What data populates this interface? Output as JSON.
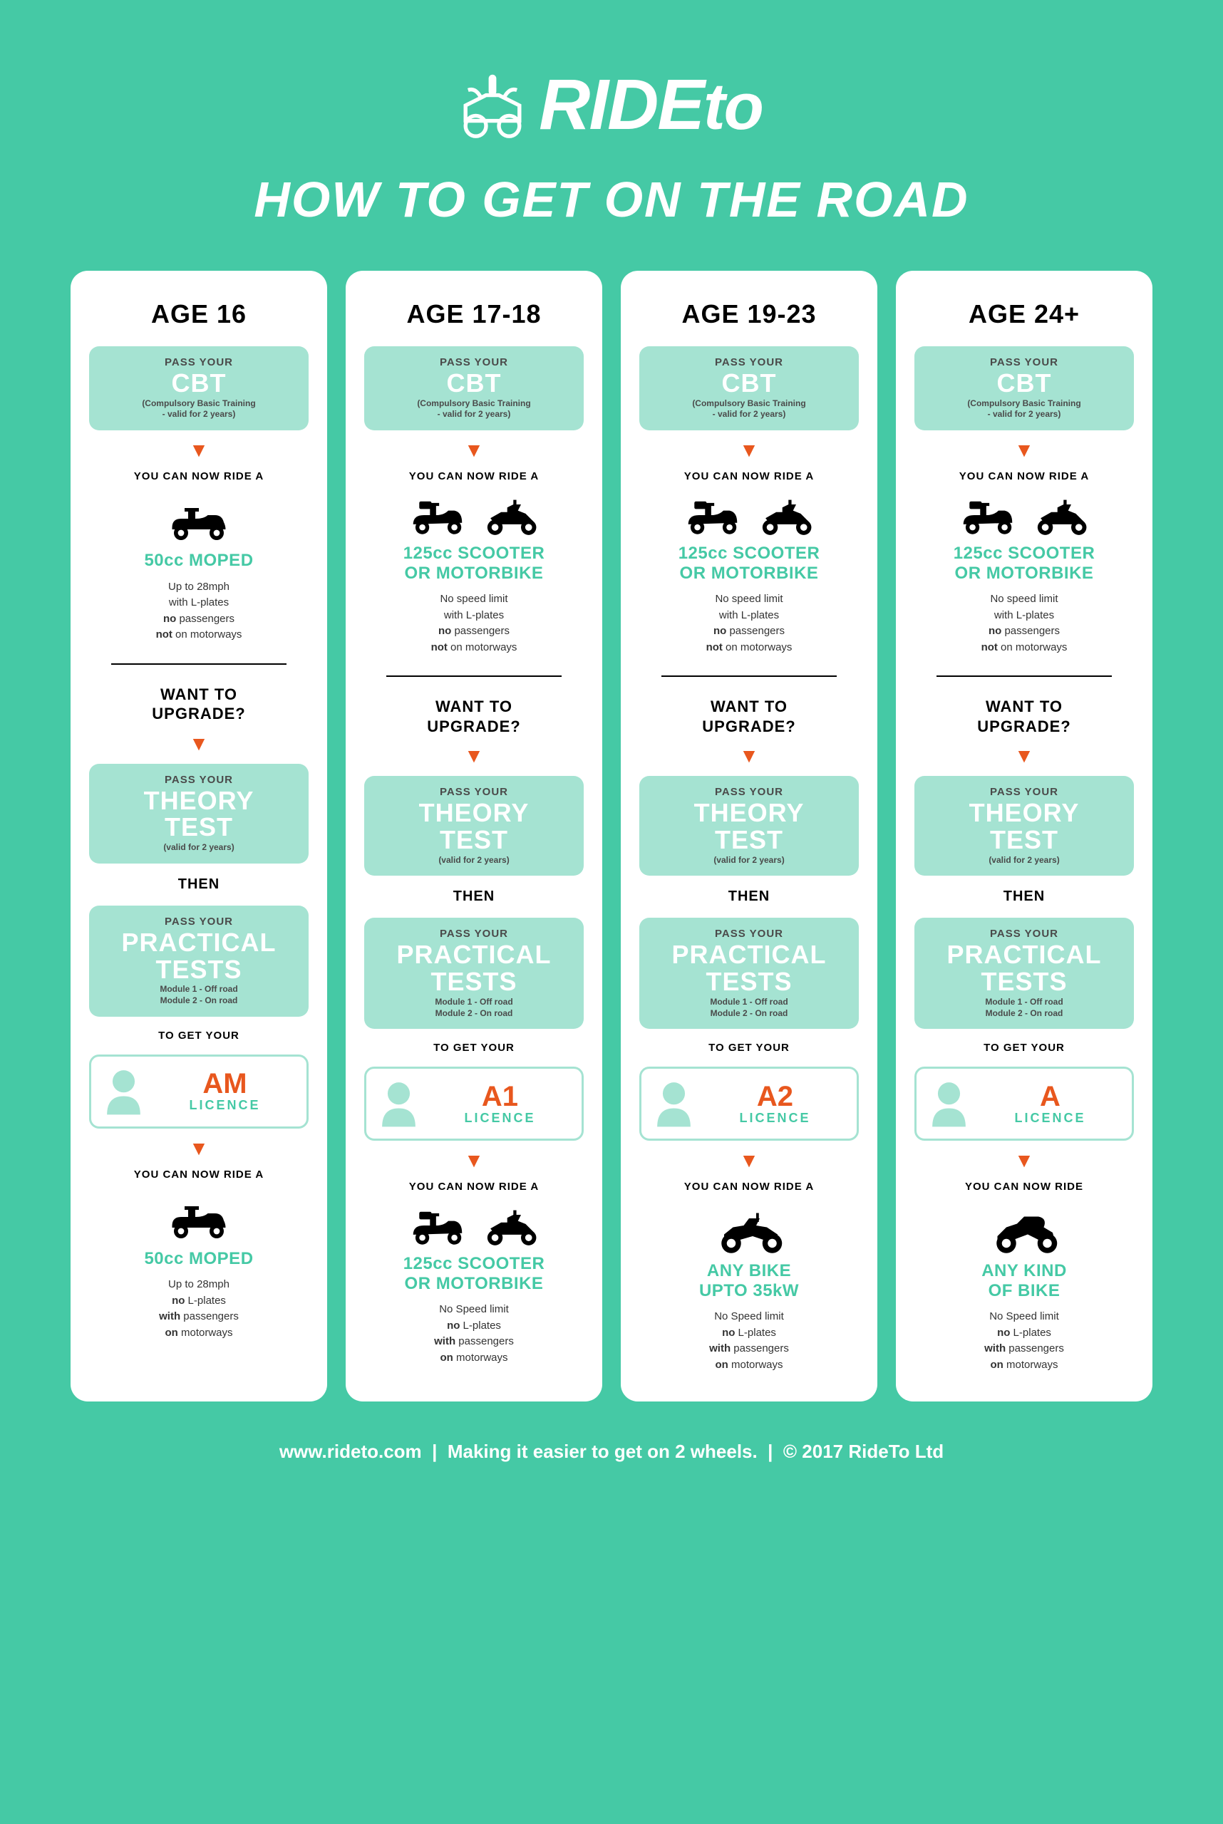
{
  "brand": {
    "name_upper": "RIDE",
    "name_lower": "to"
  },
  "subtitle": "HOW TO GET ON THE ROAD",
  "colors": {
    "background": "#45c9a5",
    "card": "#ffffff",
    "box": "#a5e3d2",
    "accent": "#e8571e",
    "text": "#333333"
  },
  "shared": {
    "cbt": {
      "pre": "PASS YOUR",
      "main": "CBT",
      "sub1": "(Compulsory Basic Training",
      "sub2": "- valid for 2 years)"
    },
    "ride_label": "YOU CAN NOW RIDE A",
    "ride_label_final_24": "YOU CAN NOW RIDE",
    "upgrade_q1": "WANT TO",
    "upgrade_q2": "UPGRADE?",
    "theory": {
      "pre": "PASS YOUR",
      "main1": "THEORY",
      "main2": "TEST",
      "sub": "(valid for 2 years)"
    },
    "then": "THEN",
    "practical": {
      "pre": "PASS YOUR",
      "main1": "PRACTICAL",
      "main2": "TESTS",
      "sub1": "Module 1 - Off road",
      "sub2": "Module 2 - On road"
    },
    "to_get": "TO GET YOUR",
    "licence_word": "LICENCE"
  },
  "columns": [
    {
      "age": "AGE 16",
      "vehicle_initial": {
        "icons": [
          "moped"
        ],
        "type": "50cc MOPED",
        "conditions": "Up to 28mph<br>with L-plates<br><b>no</b> passengers<br><b>not</b> on motorways"
      },
      "licence_code": "AM",
      "vehicle_final": {
        "icons": [
          "moped"
        ],
        "type": "50cc MOPED",
        "conditions": "Up to 28mph<br><b>no</b> L-plates<br><b>with</b> passengers<br><b>on</b> motorways"
      }
    },
    {
      "age": "AGE 17-18",
      "vehicle_initial": {
        "icons": [
          "scooter",
          "motorbike"
        ],
        "type": "125cc SCOOTER<br>OR MOTORBIKE",
        "conditions": "No speed limit<br>with L-plates<br><b>no</b> passengers<br><b>not</b> on motorways"
      },
      "licence_code": "A1",
      "vehicle_final": {
        "icons": [
          "scooter",
          "motorbike"
        ],
        "type": "125cc SCOOTER<br>OR MOTORBIKE",
        "conditions": "No Speed limit<br><b>no</b> L-plates<br><b>with</b> passengers<br><b>on</b> motorways"
      }
    },
    {
      "age": "AGE 19-23",
      "vehicle_initial": {
        "icons": [
          "scooter",
          "motorbike"
        ],
        "type": "125cc SCOOTER<br>OR MOTORBIKE",
        "conditions": "No speed limit<br>with L-plates<br><b>no</b> passengers<br><b>not</b> on motorways"
      },
      "licence_code": "A2",
      "vehicle_final": {
        "icons": [
          "bigbike"
        ],
        "type": "ANY BIKE<br>UPTO 35kW",
        "conditions": "No Speed limit<br><b>no</b> L-plates<br><b>with</b> passengers<br><b>on</b> motorways"
      }
    },
    {
      "age": "AGE 24+",
      "vehicle_initial": {
        "icons": [
          "scooter",
          "motorbike"
        ],
        "type": "125cc SCOOTER<br>OR MOTORBIKE",
        "conditions": "No speed limit<br>with L-plates<br><b>no</b> passengers<br><b>not</b> on motorways"
      },
      "licence_code": "A",
      "vehicle_final": {
        "icons": [
          "sportbike"
        ],
        "type": "ANY KIND<br>OF BIKE",
        "conditions": "No Speed limit<br><b>no</b> L-plates<br><b>with</b> passengers<br><b>on</b> motorways",
        "ride_label_override": true
      }
    }
  ],
  "footer": {
    "url": "www.rideto.com",
    "tagline": "Making it easier to get on 2 wheels.",
    "copyright": "© 2017 RideTo Ltd"
  }
}
